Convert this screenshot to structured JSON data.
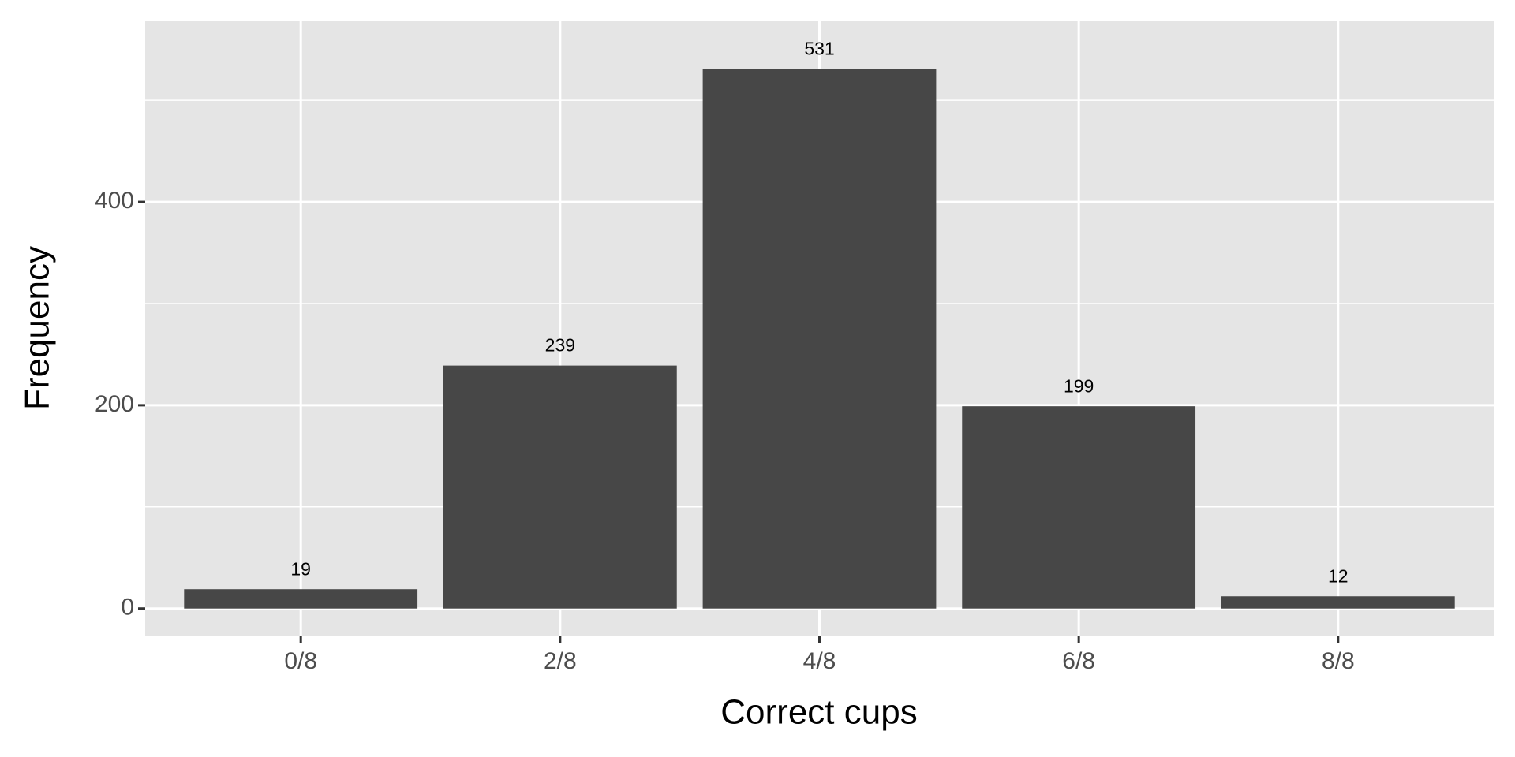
{
  "chart_data": {
    "type": "bar",
    "categories": [
      "0/8",
      "2/8",
      "4/8",
      "6/8",
      "8/8"
    ],
    "values": [
      19,
      239,
      531,
      199,
      12
    ],
    "color": "#474747",
    "xlabel": "Correct cups",
    "ylabel": "Frequency",
    "ylim": [
      -26.6,
      577.7
    ],
    "yticks": [
      0,
      200,
      400
    ],
    "minor_yticks": [
      100,
      300,
      500
    ],
    "grid": true
  }
}
